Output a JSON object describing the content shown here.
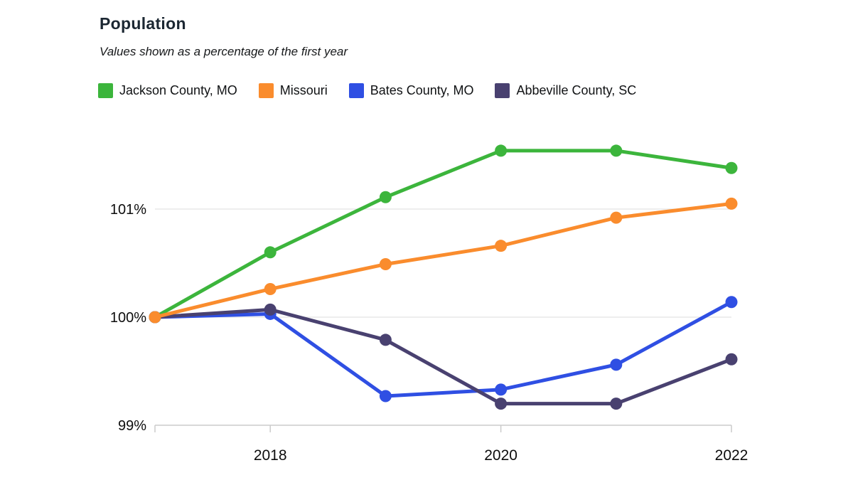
{
  "header": {
    "title": "Population",
    "subtitle": "Values shown as a percentage of the first year"
  },
  "chart_data": {
    "type": "line",
    "title": "Population",
    "subtitle": "Values shown as a percentage of the first year",
    "unit": "%",
    "grid": "horizontal",
    "legend_position": "top",
    "x": [
      2017,
      2018,
      2019,
      2020,
      2021,
      2022
    ],
    "x_axis_ticks": [
      2017,
      2018,
      2020,
      2022
    ],
    "x_tick_labels": [
      {
        "x": 2018,
        "label": "2018"
      },
      {
        "x": 2020,
        "label": "2020"
      },
      {
        "x": 2022,
        "label": "2022"
      }
    ],
    "y_ticks": [
      {
        "value": 101,
        "label": "101%"
      },
      {
        "value": 100,
        "label": "100%"
      },
      {
        "value": 99,
        "label": "99%"
      }
    ],
    "ylim": [
      98.9,
      101.75
    ],
    "series": [
      {
        "name": "Jackson County, MO",
        "color": "#3cb53c",
        "values": [
          100,
          100.6,
          101.11,
          101.54,
          101.54,
          101.38
        ]
      },
      {
        "name": "Missouri",
        "color": "#fa8c2d",
        "values": [
          100,
          100.26,
          100.49,
          100.66,
          100.92,
          101.05
        ]
      },
      {
        "name": "Bates County, MO",
        "color": "#2f4fe3",
        "values": [
          100,
          100.03,
          99.27,
          99.33,
          99.56,
          100.14
        ]
      },
      {
        "name": "Abbeville County, SC",
        "color": "#494170",
        "values": [
          100,
          100.07,
          99.79,
          99.2,
          99.2,
          99.61
        ]
      }
    ],
    "draw_order": [
      0,
      2,
      3,
      1
    ],
    "colors": {
      "gridline": "#e4e4e4",
      "axis": "#cbcbcb",
      "tick_text": "#0d0d0d"
    }
  }
}
